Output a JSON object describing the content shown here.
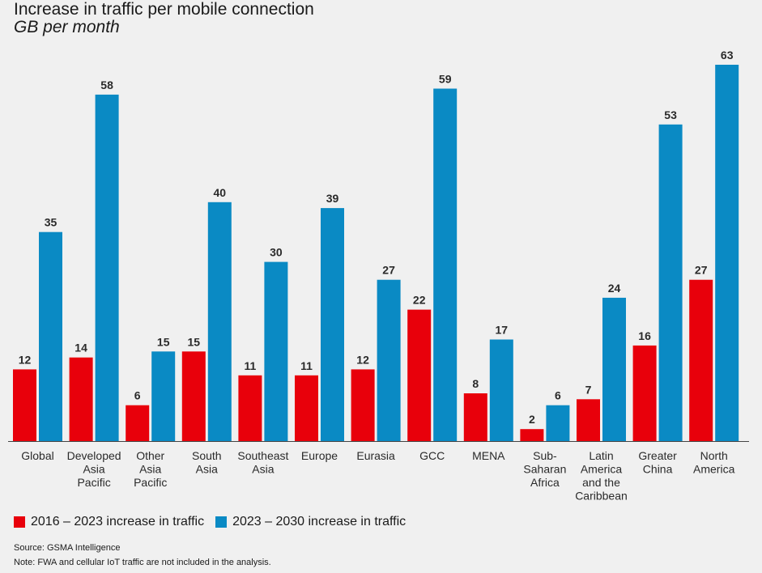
{
  "chart_data": {
    "type": "bar",
    "title": "Increase in traffic per mobile connection",
    "subtitle": "GB per month",
    "categories": [
      "Global",
      "Developed Asia Pacific",
      "Other Asia Pacific",
      "South Asia",
      "Southeast Asia",
      "Europe",
      "Eurasia",
      "GCC",
      "MENA",
      "Sub-Saharan Africa",
      "Latin America and the Caribbean",
      "Greater China",
      "North America"
    ],
    "category_lines": [
      [
        "Global"
      ],
      [
        "Developed",
        "Asia",
        "Pacific"
      ],
      [
        "Other",
        "Asia",
        "Pacific"
      ],
      [
        "South",
        "Asia"
      ],
      [
        "Southeast",
        "Asia"
      ],
      [
        "Europe"
      ],
      [
        "Eurasia"
      ],
      [
        "GCC"
      ],
      [
        "MENA"
      ],
      [
        "Sub-",
        "Saharan",
        "Africa"
      ],
      [
        "Latin",
        "America",
        "and the",
        "Caribbean"
      ],
      [
        "Greater",
        "China"
      ],
      [
        "North",
        "America"
      ]
    ],
    "series": [
      {
        "name": "2016 – 2023 increase in traffic",
        "color": "#e8000b",
        "values": [
          12,
          14,
          6,
          15,
          11,
          11,
          12,
          22,
          8,
          2,
          7,
          16,
          27
        ]
      },
      {
        "name": "2023 – 2030 increase in traffic",
        "color": "#0a8ac4",
        "values": [
          35,
          58,
          15,
          40,
          30,
          39,
          27,
          59,
          17,
          6,
          24,
          53,
          63
        ]
      }
    ],
    "ylim": [
      0,
      63
    ],
    "grid": false,
    "legend_position": "bottom-left",
    "data_labels": true
  },
  "footer": {
    "source": "Source: GSMA Intelligence",
    "note": "Note: FWA and cellular IoT traffic are not included in the analysis."
  }
}
